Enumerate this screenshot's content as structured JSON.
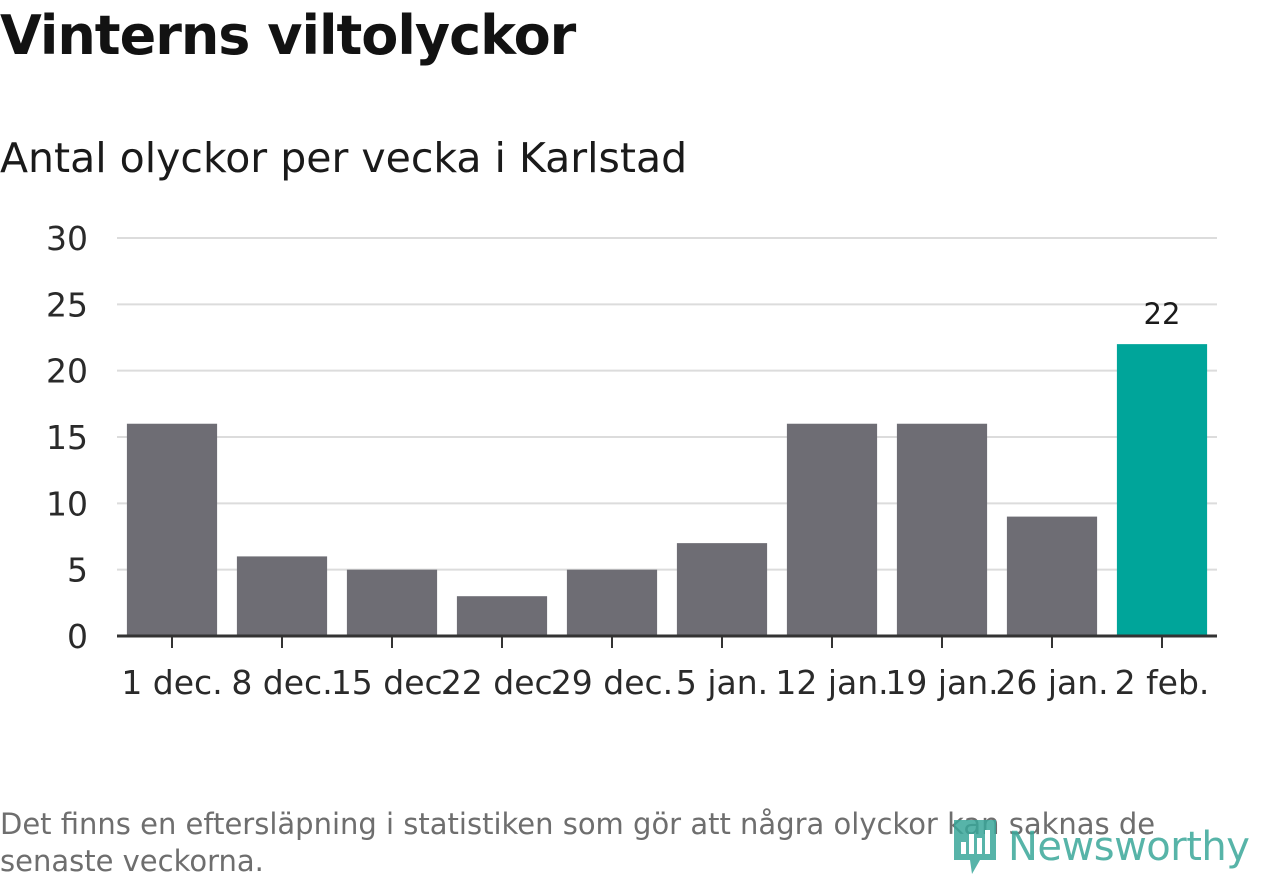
{
  "title": "Vinterns viltolyckor",
  "subtitle": "Antal olyckor per vecka i Karlstad",
  "footnote": "Det finns en eftersläpning i statistiken som gör att några olyckor kan saknas de senaste veckorna.",
  "logo": {
    "text": "Newsworthy",
    "icon": "newsworthy-logo-icon",
    "color": "#3aa79a"
  },
  "chart_data": {
    "type": "bar",
    "categories": [
      "1 dec.",
      "8 dec.",
      "15 dec.",
      "22 dec.",
      "29 dec.",
      "5 jan.",
      "12 jan.",
      "19 jan.",
      "26 jan.",
      "2 feb."
    ],
    "values": [
      16,
      6,
      5,
      3,
      5,
      7,
      16,
      16,
      9,
      22
    ],
    "ylim": [
      0,
      30
    ],
    "yticks": [
      0,
      5,
      10,
      15,
      20,
      25,
      30
    ],
    "grid": true,
    "legend": "none",
    "xlabel": "",
    "ylabel": "",
    "bar_color": "#6e6d74",
    "highlight_color": "#00a59a",
    "highlight_index": 9,
    "data_labels": [
      {
        "index": 9,
        "text": "22"
      }
    ]
  }
}
